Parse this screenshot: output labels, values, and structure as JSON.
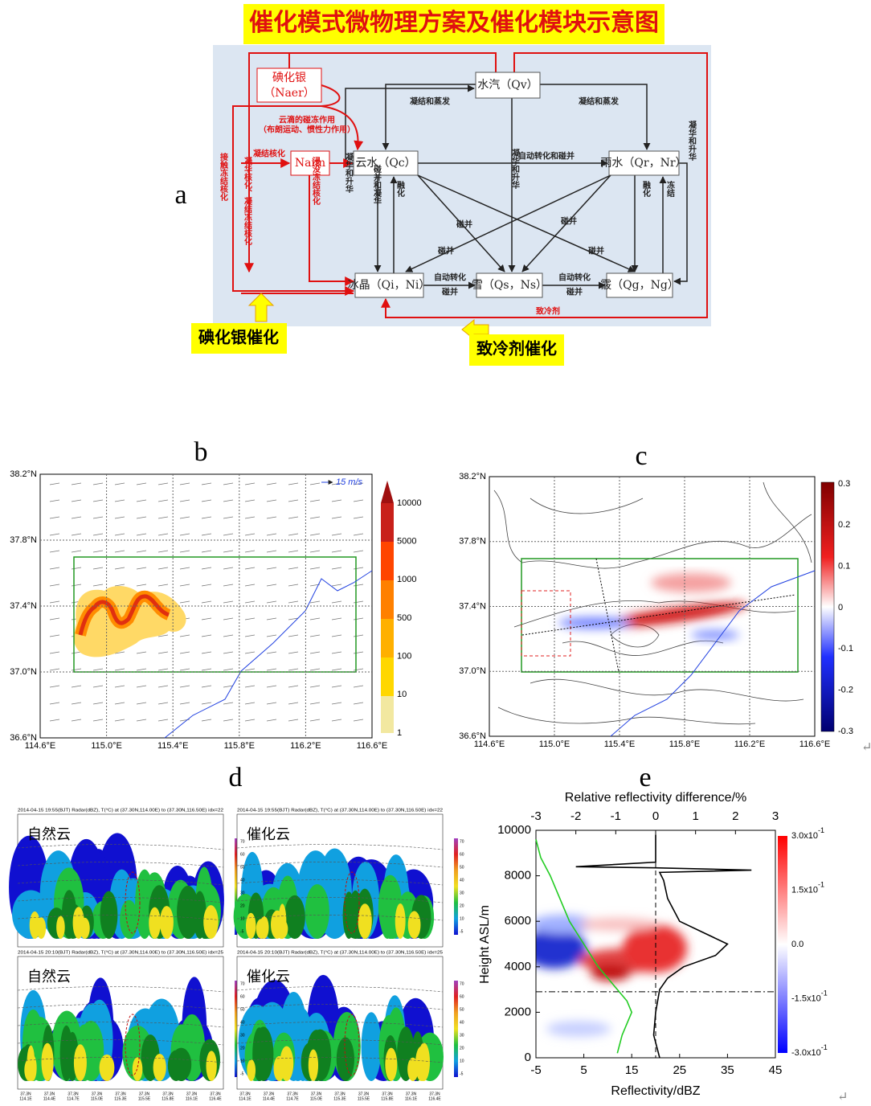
{
  "panel_a": {
    "label": "a",
    "title": "催化模式微物理方案及催化模块示意图",
    "nodes": [
      {
        "label": "碘化银",
        "sub": "（Naer）"
      },
      {
        "label": "水汽（Qv）"
      },
      {
        "label": "Naim"
      },
      {
        "label": "云水（Qc）"
      },
      {
        "label": "雨水（Qr，Nr）"
      },
      {
        "label": "冰晶（Qi，Ni）"
      },
      {
        "label": "雪（Qs，Ns）"
      },
      {
        "label": "霰（Qg，Ng）"
      }
    ],
    "process_labels": [
      "凝结和蒸发",
      "凝结和蒸发",
      "云滴的碰冻作用",
      "（布朗运动、惯性力作用）",
      "凝结核化",
      "自动转化和碰并",
      "接触冻结核化",
      "凝华核化、凝结冻结核化",
      "浸没冻结核化",
      "凝华和升华",
      "碰并和凝华",
      "融化",
      "凝华和升华",
      "融化",
      "冻结",
      "凝华和升华",
      "自动转化",
      "碰并",
      "自动转化",
      "碰并",
      "致冷剂",
      "碰并",
      "碰并",
      "碰并",
      "碰并"
    ],
    "seeding": [
      "碘化银催化",
      "致冷剂催化"
    ]
  },
  "panel_b": {
    "label": "b",
    "lat_ticks": [
      "38.2°N",
      "37.8°N",
      "37.4°N",
      "37.0°N",
      "36.6°N"
    ],
    "lon_ticks": [
      "114.6°E",
      "115.0°E",
      "115.4°E",
      "115.8°E",
      "116.2°E",
      "116.6°E"
    ],
    "wind_ref": "15 m/s",
    "colorbar_ticks": [
      10000,
      5000,
      1000,
      500,
      100,
      10,
      1
    ]
  },
  "panel_c": {
    "label": "c",
    "lat_ticks": [
      "38.2°N",
      "37.8°N",
      "37.4°N",
      "37.0°N",
      "36.6°N"
    ],
    "lon_ticks": [
      "114.6°E",
      "115.0°E",
      "115.4°E",
      "115.8°E",
      "116.2°E",
      "116.6°E"
    ],
    "colorbar_ticks": [
      0.3,
      0.2,
      0.1,
      0,
      -0.1,
      -0.2,
      -0.3
    ]
  },
  "panel_d": {
    "label": "d",
    "plots": [
      {
        "title": "自然云",
        "header": "2014-04-15 19:55(BJT) Radar(dBZ), T(°C) at (37.30N,114.00E) to (37.30N,116.50E)  idx=22"
      },
      {
        "title": "催化云",
        "header": "2014-04-15 19:55(BJT) Radar(dBZ), T(°C) at (37.30N,114.00E) to (37.30N,116.50E)  idx=22"
      },
      {
        "title": "自然云",
        "header": "2014-04-15 20:10(BJT) Radar(dBZ), T(°C) at (37.30N,114.00E) to (37.30N,116.50E)  idx=25"
      },
      {
        "title": "催化云",
        "header": "2014-04-15 20:10(BJT) Radar(dBZ), T(°C) at (37.30N,114.00E) to (37.30N,116.50E)  idx=25"
      }
    ],
    "x_lat": "37.3N",
    "x_lons": [
      "114.1E",
      "114.4E",
      "114.7E",
      "115.0E",
      "115.3E",
      "115.5E",
      "115.8E",
      "116.1E",
      "116.4E"
    ],
    "colorbar_ticks": [
      70,
      60,
      50,
      40,
      30,
      20,
      10,
      -5
    ]
  },
  "panel_e": {
    "label": "e",
    "x_label": "Reflectivity/dBZ",
    "x2_label": "Relative reflectivity difference/%",
    "y_label": "Height ASL/m",
    "xlim": [
      -5,
      45
    ],
    "xticks": [
      -5,
      5,
      15,
      25,
      35,
      45
    ],
    "x2lim": [
      -3,
      3
    ],
    "x2ticks": [
      -3,
      -2,
      -1,
      0,
      1,
      2,
      3
    ],
    "ylim": [
      0,
      10000
    ],
    "yticks": [
      0,
      2000,
      4000,
      6000,
      8000,
      10000
    ],
    "colorbar_ticks": [
      {
        "base": "3.0x10",
        "exp": "-1"
      },
      {
        "base": "1.5x10",
        "exp": "-1"
      },
      {
        "base": "0.0"
      },
      {
        "base": "-1.5x10",
        "exp": "-1"
      },
      {
        "base": "-3.0x10",
        "exp": "-1"
      }
    ],
    "reflectivity_curve": {
      "color": "#22cc22",
      "height": [
        9600,
        8800,
        8000,
        7000,
        6000,
        5000,
        4000,
        3000,
        2500,
        2000,
        1000,
        200
      ],
      "values": [
        -5,
        -4,
        -2,
        0,
        2,
        5,
        8,
        12,
        14,
        15,
        13,
        12
      ]
    },
    "difference_curve": {
      "color": "#000000",
      "height": [
        9800,
        9000,
        8600,
        8400,
        8350,
        8250,
        8150,
        7800,
        7000,
        6000,
        5500,
        5000,
        4500,
        4000,
        3500,
        3000,
        2000,
        1000,
        0
      ],
      "values": [
        0,
        0,
        0,
        -2,
        0,
        2.4,
        0.1,
        0.2,
        0.3,
        0.6,
        1.2,
        1.8,
        1.5,
        0.7,
        0.3,
        0.1,
        0,
        -0.05,
        0.1
      ]
    }
  }
}
